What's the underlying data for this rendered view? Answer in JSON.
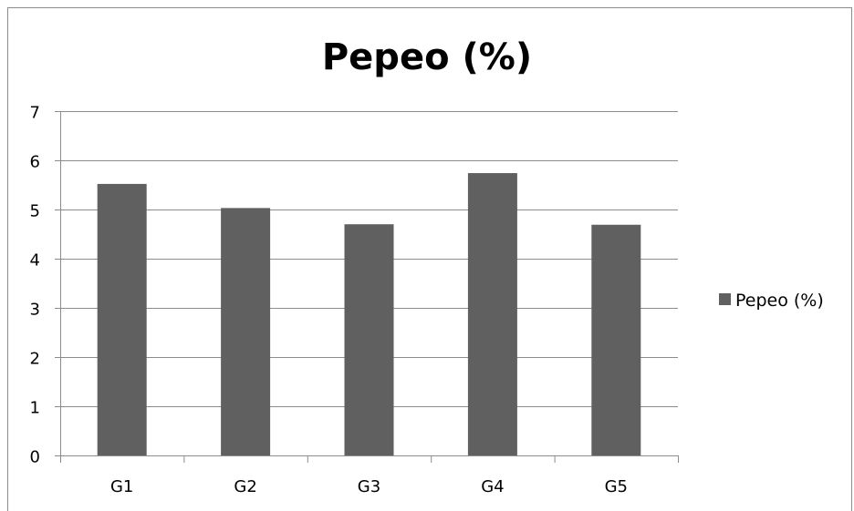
{
  "chart_data": {
    "type": "bar",
    "title": "Pepeo (%)",
    "xlabel": "",
    "ylabel": "",
    "categories": [
      "G1",
      "G2",
      "G3",
      "G4",
      "G5"
    ],
    "series": [
      {
        "name": "Pepeo (%)",
        "values": [
          5.52,
          5.03,
          4.7,
          5.74,
          4.69
        ],
        "color": "#606060"
      }
    ],
    "ylim": [
      0,
      7
    ],
    "yticks": [
      0,
      1,
      2,
      3,
      4,
      5,
      6,
      7
    ],
    "grid": true,
    "legend": "right"
  }
}
